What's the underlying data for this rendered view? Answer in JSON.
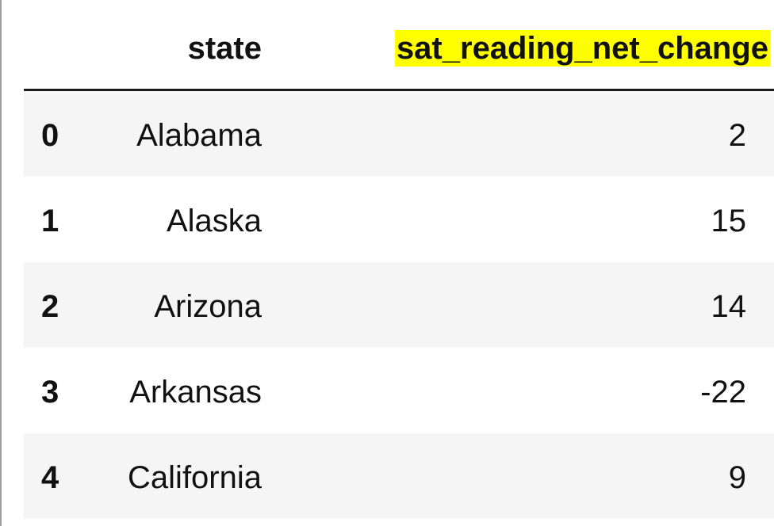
{
  "table": {
    "columns": {
      "state": "state",
      "value": "sat_reading_net_change"
    },
    "highlight_color": "#ffff00",
    "rows": [
      {
        "index": "0",
        "state": "Alabama",
        "value": "2"
      },
      {
        "index": "1",
        "state": "Alaska",
        "value": "15"
      },
      {
        "index": "2",
        "state": "Arizona",
        "value": "14"
      },
      {
        "index": "3",
        "state": "Arkansas",
        "value": "-22"
      },
      {
        "index": "4",
        "state": "California",
        "value": "9"
      }
    ]
  }
}
